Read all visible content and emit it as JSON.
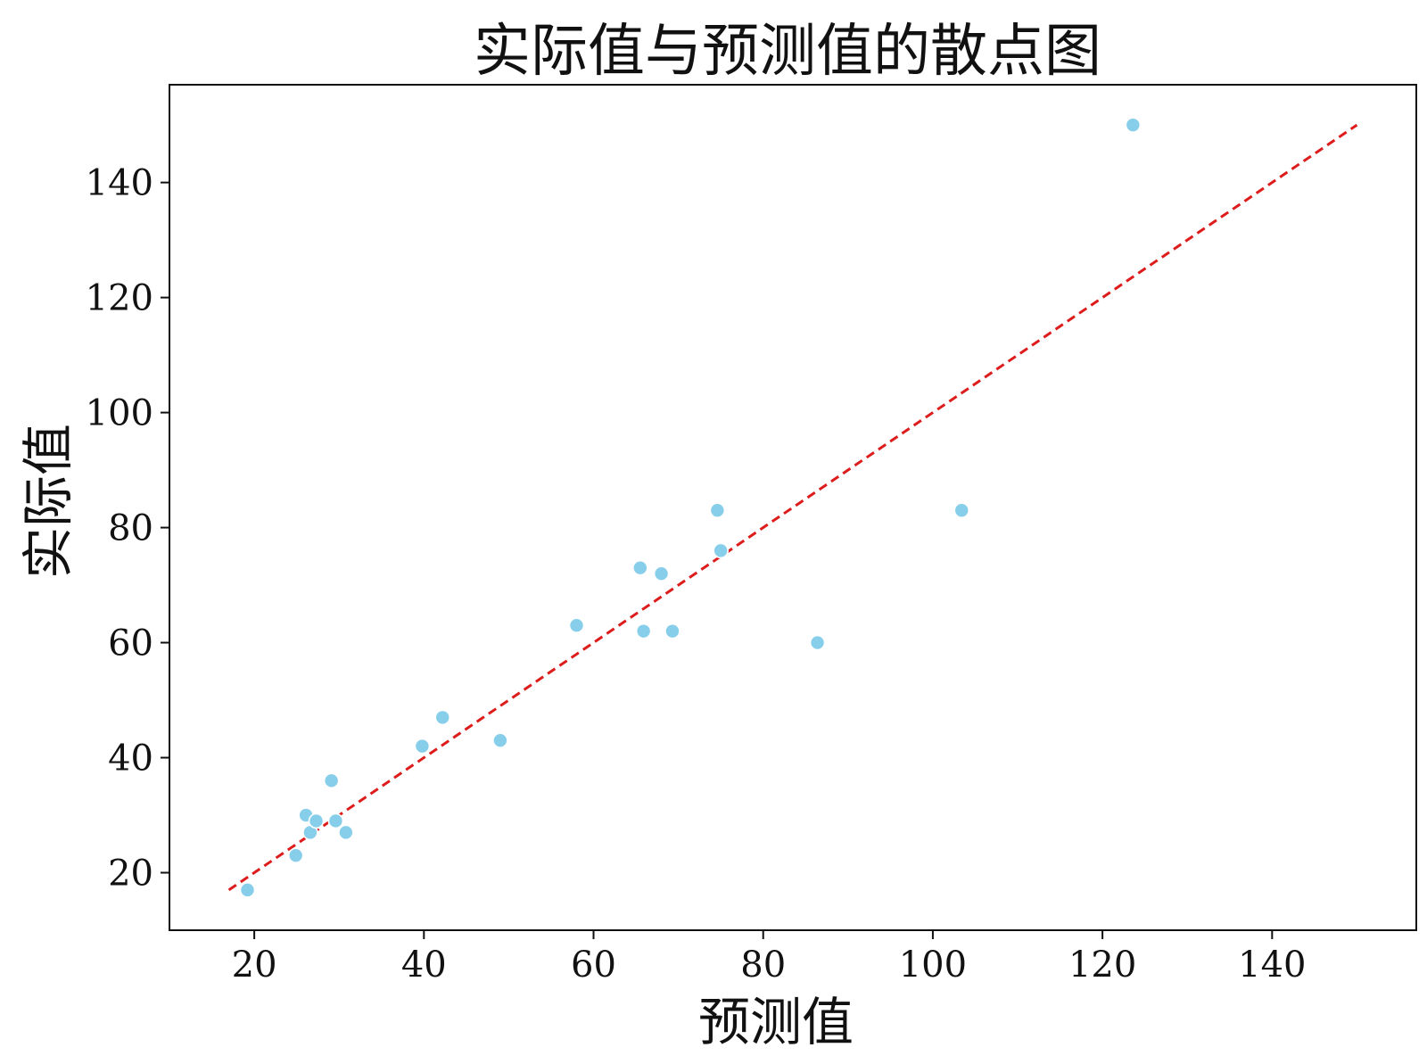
{
  "chart_data": {
    "type": "scatter",
    "title": "实际值与预测值的散点图",
    "xlabel": "预测值",
    "ylabel": "实际值",
    "xlim": [
      10,
      157
    ],
    "ylim": [
      10,
      157
    ],
    "xticks": [
      20,
      40,
      60,
      80,
      100,
      120,
      140
    ],
    "yticks": [
      20,
      40,
      60,
      80,
      100,
      120,
      140
    ],
    "grid": false,
    "legend": "none",
    "colors": {
      "points": "#87CEEB",
      "reference_line": "#DD1C1C",
      "axes": "#111111"
    },
    "reference_line": {
      "style": "dashed",
      "x": [
        17,
        150
      ],
      "y": [
        17,
        150
      ]
    },
    "points": [
      {
        "x": 19.2,
        "y": 17
      },
      {
        "x": 24.9,
        "y": 23
      },
      {
        "x": 26.1,
        "y": 30
      },
      {
        "x": 26.6,
        "y": 27
      },
      {
        "x": 27.3,
        "y": 29
      },
      {
        "x": 29.1,
        "y": 36
      },
      {
        "x": 29.6,
        "y": 29
      },
      {
        "x": 30.8,
        "y": 27
      },
      {
        "x": 39.8,
        "y": 42
      },
      {
        "x": 42.2,
        "y": 47
      },
      {
        "x": 49.0,
        "y": 43
      },
      {
        "x": 58.0,
        "y": 63
      },
      {
        "x": 65.5,
        "y": 73
      },
      {
        "x": 65.9,
        "y": 62
      },
      {
        "x": 68.0,
        "y": 72
      },
      {
        "x": 69.3,
        "y": 62
      },
      {
        "x": 74.6,
        "y": 83
      },
      {
        "x": 75.0,
        "y": 76
      },
      {
        "x": 86.4,
        "y": 60
      },
      {
        "x": 103.4,
        "y": 83
      },
      {
        "x": 123.6,
        "y": 150
      }
    ]
  }
}
